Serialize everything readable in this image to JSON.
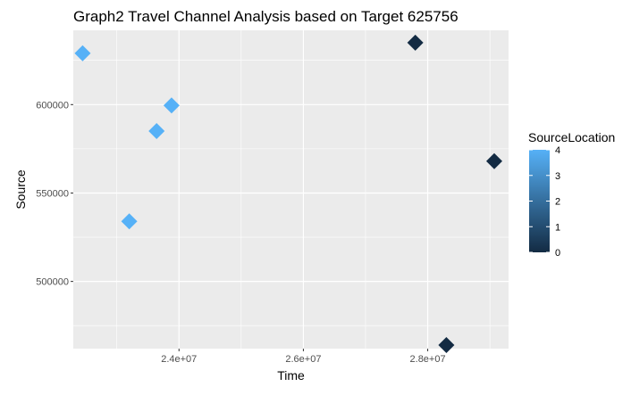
{
  "chart_data": {
    "type": "scatter",
    "title": "Graph2 Travel Channel Analysis based on Target 625756",
    "xlabel": "Time",
    "ylabel": "Source",
    "xlim": [
      22300000,
      29300000
    ],
    "ylim": [
      462000,
      642000
    ],
    "x_ticks": [
      {
        "value": 24000000,
        "label": "2.4e+07"
      },
      {
        "value": 26000000,
        "label": "2.6e+07"
      },
      {
        "value": 28000000,
        "label": "2.8e+07"
      }
    ],
    "y_ticks": [
      {
        "value": 500000,
        "label": "500000"
      },
      {
        "value": 550000,
        "label": "550000"
      },
      {
        "value": 600000,
        "label": "600000"
      }
    ],
    "marker": "diamond",
    "points": [
      {
        "x": 22450000,
        "y": 629000,
        "SourceLocation": 4
      },
      {
        "x": 23200000,
        "y": 534000,
        "SourceLocation": 4
      },
      {
        "x": 23640000,
        "y": 585000,
        "SourceLocation": 4
      },
      {
        "x": 23880000,
        "y": 599500,
        "SourceLocation": 4
      },
      {
        "x": 27800000,
        "y": 635000,
        "SourceLocation": 0
      },
      {
        "x": 28300000,
        "y": 464000,
        "SourceLocation": 0
      },
      {
        "x": 29070000,
        "y": 568000,
        "SourceLocation": 0
      }
    ],
    "legend": {
      "title": "SourceLocation",
      "position": "right",
      "range": [
        0,
        4
      ],
      "ticks": [
        "0",
        "1",
        "2",
        "3",
        "4"
      ],
      "color_low": "#132b43",
      "color_high": "#56b1f7"
    },
    "colors": {
      "panel_background": "#ebebeb",
      "grid_major": "#ffffff",
      "tick_text": "#4d4d4d"
    }
  }
}
